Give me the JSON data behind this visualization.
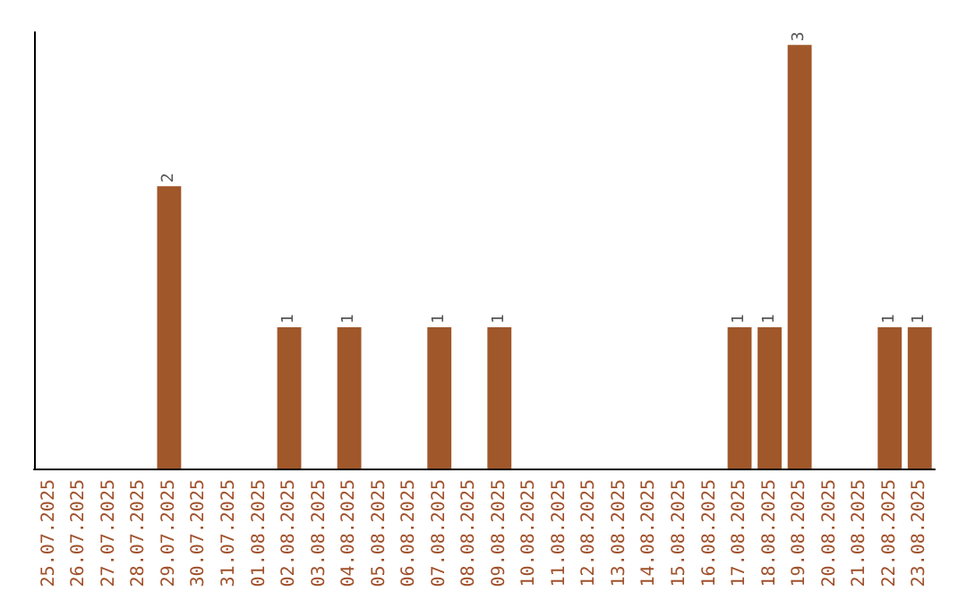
{
  "chart_data": {
    "type": "bar",
    "categories": [
      "25.07.2025",
      "26.07.2025",
      "27.07.2025",
      "28.07.2025",
      "29.07.2025",
      "30.07.2025",
      "31.07.2025",
      "01.08.2025",
      "02.08.2025",
      "03.08.2025",
      "04.08.2025",
      "05.08.2025",
      "06.08.2025",
      "07.08.2025",
      "08.08.2025",
      "09.08.2025",
      "10.08.2025",
      "11.08.2025",
      "12.08.2025",
      "13.08.2025",
      "14.08.2025",
      "15.08.2025",
      "16.08.2025",
      "17.08.2025",
      "18.08.2025",
      "19.08.2025",
      "20.08.2025",
      "21.08.2025",
      "22.08.2025",
      "23.08.2025"
    ],
    "values": [
      0,
      0,
      0,
      0,
      2,
      0,
      0,
      0,
      1,
      0,
      1,
      0,
      0,
      1,
      0,
      1,
      0,
      0,
      0,
      0,
      0,
      0,
      0,
      1,
      1,
      3,
      0,
      0,
      1,
      1
    ],
    "value_labels": [
      null,
      null,
      null,
      null,
      "2",
      null,
      null,
      null,
      "1",
      null,
      "1",
      null,
      null,
      "1",
      null,
      "1",
      null,
      null,
      null,
      null,
      null,
      null,
      null,
      "1",
      "1",
      "3",
      null,
      null,
      "1",
      "1"
    ],
    "color": "#a0572a"
  }
}
